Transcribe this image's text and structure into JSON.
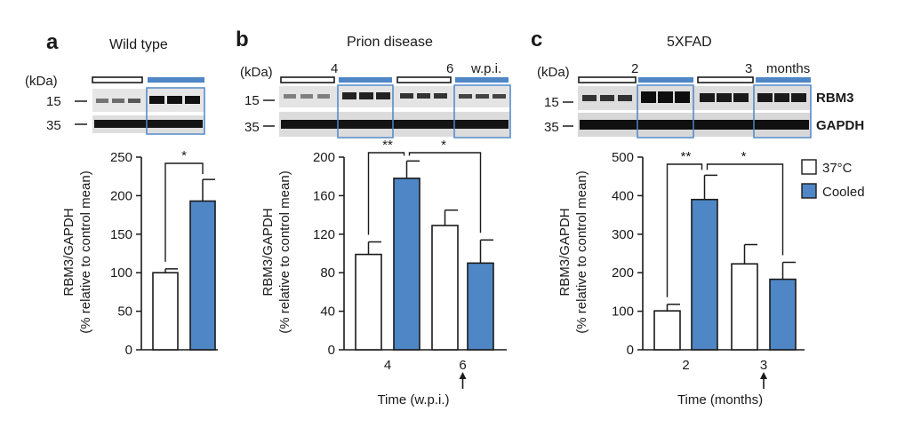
{
  "colors": {
    "control": "#ffffff",
    "cooled": "#4f86c6",
    "stroke": "#1a1a1a",
    "box": "#4f86c6"
  },
  "legend": {
    "items": [
      {
        "label": "37°C",
        "color": "#ffffff"
      },
      {
        "label": "Cooled",
        "color": "#4f86c6"
      }
    ]
  },
  "panels": [
    {
      "letter": "a",
      "title": "Wild type",
      "kda": "(kDa)",
      "markers": [
        "15",
        "35"
      ],
      "blot_labels": [],
      "header": [],
      "ylabel": [
        "RBM3/GAPDH",
        "(% relative to control mean)"
      ],
      "xlabel": "",
      "categories": [],
      "arrow_category": null
    },
    {
      "letter": "b",
      "title": "Prion disease",
      "kda": "(kDa)",
      "markers": [
        "15",
        "35"
      ],
      "blot_labels": [],
      "header": [
        "4",
        "6",
        "w.p.i."
      ],
      "ylabel": [
        "RBM3/GAPDH",
        "(% relative to control mean)"
      ],
      "xlabel": "Time (w.p.i.)",
      "categories": [
        "4",
        "6"
      ],
      "arrow_category": "6"
    },
    {
      "letter": "c",
      "title": "5XFAD",
      "kda": "(kDa)",
      "markers": [
        "15",
        "35"
      ],
      "blot_labels": [
        "RBM3",
        "GAPDH"
      ],
      "header": [
        "2",
        "3",
        "months"
      ],
      "ylabel": [
        "RBM3/GAPDH",
        "(% relative to control mean)"
      ],
      "xlabel": "Time (months)",
      "categories": [
        "2",
        "3"
      ],
      "arrow_category": "3"
    }
  ],
  "chart_data": [
    {
      "type": "bar",
      "title": "Wild type",
      "ylabel": "RBM3/GAPDH (% relative to control mean)",
      "ylim": [
        0,
        250
      ],
      "yticks": [
        0,
        50,
        100,
        150,
        200,
        250
      ],
      "categories": [
        ""
      ],
      "series": [
        {
          "name": "37°C",
          "values": [
            100
          ],
          "errors": [
            5
          ]
        },
        {
          "name": "Cooled",
          "values": [
            193
          ],
          "errors": [
            28
          ]
        }
      ],
      "significance": [
        {
          "label": "*",
          "between": "37°C vs Cooled"
        }
      ]
    },
    {
      "type": "bar",
      "title": "Prion disease",
      "xlabel": "Time (w.p.i.)",
      "ylabel": "RBM3/GAPDH (% relative to control mean)",
      "ylim": [
        0,
        200
      ],
      "yticks": [
        0,
        40,
        80,
        120,
        160,
        200
      ],
      "categories": [
        "4",
        "6"
      ],
      "series": [
        {
          "name": "37°C",
          "values": [
            99,
            129
          ],
          "errors": [
            13,
            16
          ]
        },
        {
          "name": "Cooled",
          "values": [
            178,
            90
          ],
          "errors": [
            18,
            24
          ]
        }
      ],
      "significance": [
        {
          "label": "**",
          "between": "4: 37°C vs Cooled"
        },
        {
          "label": "*",
          "between": "4 Cooled vs 6 Cooled"
        }
      ]
    },
    {
      "type": "bar",
      "title": "5XFAD",
      "xlabel": "Time (months)",
      "ylabel": "RBM3/GAPDH (% relative to control mean)",
      "ylim": [
        0,
        500
      ],
      "yticks": [
        0,
        100,
        200,
        300,
        400,
        500
      ],
      "categories": [
        "2",
        "3"
      ],
      "series": [
        {
          "name": "37°C",
          "values": [
            101,
            223
          ],
          "errors": [
            17,
            50
          ]
        },
        {
          "name": "Cooled",
          "values": [
            390,
            183
          ],
          "errors": [
            63,
            44
          ]
        }
      ],
      "significance": [
        {
          "label": "**",
          "between": "2: 37°C vs Cooled"
        },
        {
          "label": "*",
          "between": "2 Cooled vs 3 Cooled"
        }
      ]
    }
  ]
}
